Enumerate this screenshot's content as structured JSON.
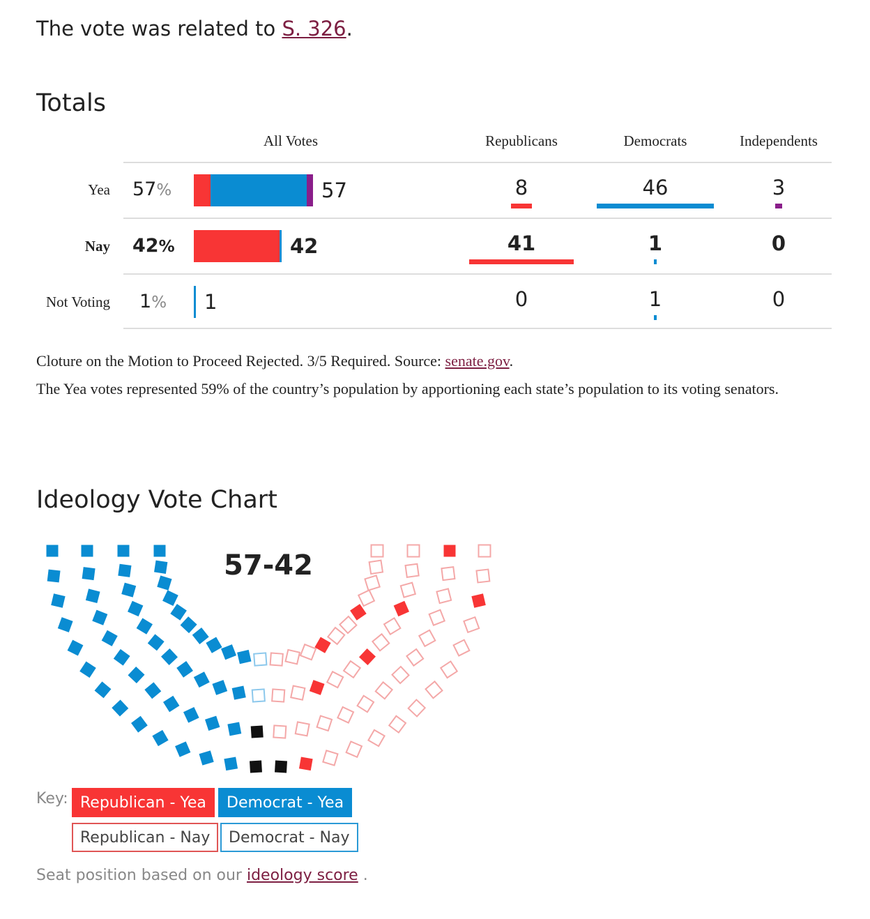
{
  "intro": {
    "prefix": "The vote was related to ",
    "bill_link": "S. 326",
    "suffix": "."
  },
  "totals": {
    "heading": "Totals",
    "columns": {
      "all_votes": "All Votes",
      "republicans": "Republicans",
      "democrats": "Democrats",
      "independents": "Independents"
    },
    "percent_sign": "%",
    "rows": [
      {
        "key": "yea",
        "label": "Yea",
        "percent": "57",
        "count": "57",
        "republicans": "8",
        "democrats": "46",
        "independents": "3",
        "emphasis": false
      },
      {
        "key": "nay",
        "label": "Nay",
        "percent": "42",
        "count": "42",
        "republicans": "41",
        "democrats": "1",
        "independents": "0",
        "emphasis": true
      },
      {
        "key": "not_voting",
        "label": "Not Voting",
        "percent": "1",
        "count": "1",
        "republicans": "0",
        "democrats": "1",
        "independents": "0",
        "emphasis": false
      }
    ]
  },
  "notes": {
    "result_prefix": "Cloture on the Motion to Proceed Rejected. 3/5 Required. Source: ",
    "source_link": "senate.gov",
    "result_suffix": ".",
    "population": "The Yea votes represented 59% of the country’s population by apportioning each state’s population to its voting senators."
  },
  "ideology": {
    "heading": "Ideology Vote Chart",
    "result": "57-42",
    "key_label": "Key:",
    "key_items": {
      "rep_yea": "Republican - Yea",
      "dem_yea": "Democrat - Yea",
      "rep_nay": "Republican - Nay",
      "dem_nay": "Democrat - Nay"
    },
    "seat_note_prefix": "Seat position based on our ",
    "seat_note_link": "ideology score",
    "seat_note_suffix": " ."
  },
  "colors": {
    "republican": "#f83535",
    "democrat": "#0a8cd2",
    "independent": "#8a1e8a",
    "rep_nay_outline": "#f4a8a8",
    "dem_nay_outline": "#8cc8ec",
    "independent_seat": "#111111",
    "link": "#7d1f42"
  },
  "chart_data": {
    "type": "bar",
    "categories": [
      "Yea",
      "Nay",
      "Not Voting"
    ],
    "series": [
      {
        "name": "Republicans",
        "values": [
          8,
          41,
          0
        ]
      },
      {
        "name": "Democrats",
        "values": [
          46,
          1,
          1
        ]
      },
      {
        "name": "Independents",
        "values": [
          3,
          0,
          0
        ]
      }
    ],
    "totals": [
      57,
      42,
      1
    ],
    "percents": [
      57,
      42,
      1
    ],
    "total_seats": 100
  }
}
